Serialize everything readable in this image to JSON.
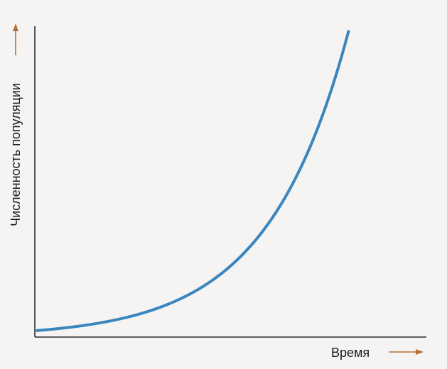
{
  "chart_data": {
    "type": "line",
    "title": "",
    "xlabel": "Время",
    "ylabel": "Численность популяции",
    "grid": false,
    "legend": "none",
    "x": [
      0,
      1,
      2,
      3,
      4,
      5,
      6,
      7,
      8,
      9,
      10
    ],
    "series": [
      {
        "values": [
          1.0,
          1.47,
          2.16,
          3.17,
          4.66,
          6.85,
          10.07,
          14.8,
          21.76,
          31.98,
          47.0
        ]
      }
    ],
    "xlim": [
      0,
      12.5
    ],
    "ylim": [
      0,
      48
    ],
    "colors": {
      "curve": "#3a86bf",
      "axis": "#2b2b2b",
      "arrow": "#b0723a"
    }
  }
}
